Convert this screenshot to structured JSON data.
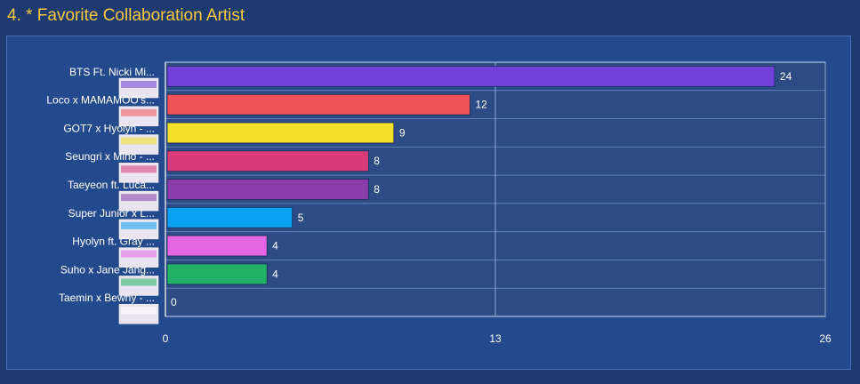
{
  "title": "4. * Favorite Collaboration Artist",
  "chart_data": {
    "type": "bar",
    "orientation": "horizontal",
    "title": "4. * Favorite Collaboration Artist",
    "categories": [
      "BTS Ft. Nicki Mi...",
      "Loco x MAMAMOO's...",
      "GOT7 x Hyolyn - ...",
      "Seungri x Mino - ...",
      "Taeyeon ft. Luca...",
      "Super Junior x L...",
      "Hyolyn ft. Gray ...",
      "Suho x Jane Jang...",
      "Taemin x Bewhy - ..."
    ],
    "values": [
      24,
      12,
      9,
      8,
      8,
      5,
      4,
      4,
      0
    ],
    "colors": [
      "#7040d8",
      "#f2525a",
      "#f2e02a",
      "#d93c7a",
      "#8a3cab",
      "#0aa1f2",
      "#e466e2",
      "#22b266",
      "#ffffff"
    ],
    "xlim": [
      0,
      26
    ],
    "xticks": [
      0,
      13,
      26
    ],
    "grid": true
  }
}
